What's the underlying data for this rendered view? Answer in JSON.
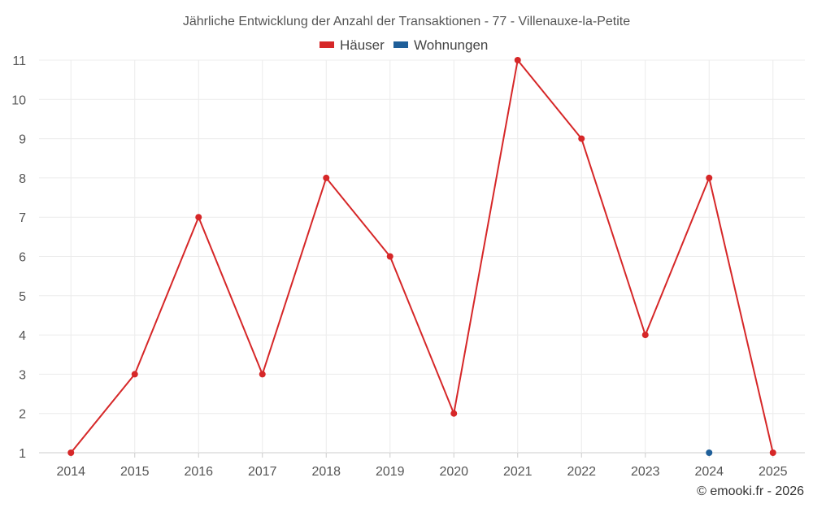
{
  "chart_data": {
    "type": "line",
    "title": "Jährliche Entwicklung der Anzahl der Transaktionen - 77 - Villenauxe-la-Petite",
    "x": [
      "2014",
      "2015",
      "2016",
      "2017",
      "2018",
      "2019",
      "2020",
      "2021",
      "2022",
      "2023",
      "2024",
      "2025"
    ],
    "series": [
      {
        "name": "Häuser",
        "color": "#d62728",
        "values": [
          1,
          3,
          7,
          3,
          8,
          6,
          2,
          11,
          9,
          4,
          8,
          1
        ]
      },
      {
        "name": "Wohnungen",
        "color": "#1f5f99",
        "values": [
          null,
          null,
          null,
          null,
          null,
          null,
          null,
          null,
          null,
          null,
          1,
          null
        ]
      }
    ],
    "ylim": [
      1,
      11
    ],
    "yticks": [
      1,
      2,
      3,
      4,
      5,
      6,
      7,
      8,
      9,
      10,
      11
    ],
    "xlabel": "",
    "ylabel": "",
    "grid": true,
    "legend": "top-center"
  },
  "credit": "© emooki.fr - 2026"
}
